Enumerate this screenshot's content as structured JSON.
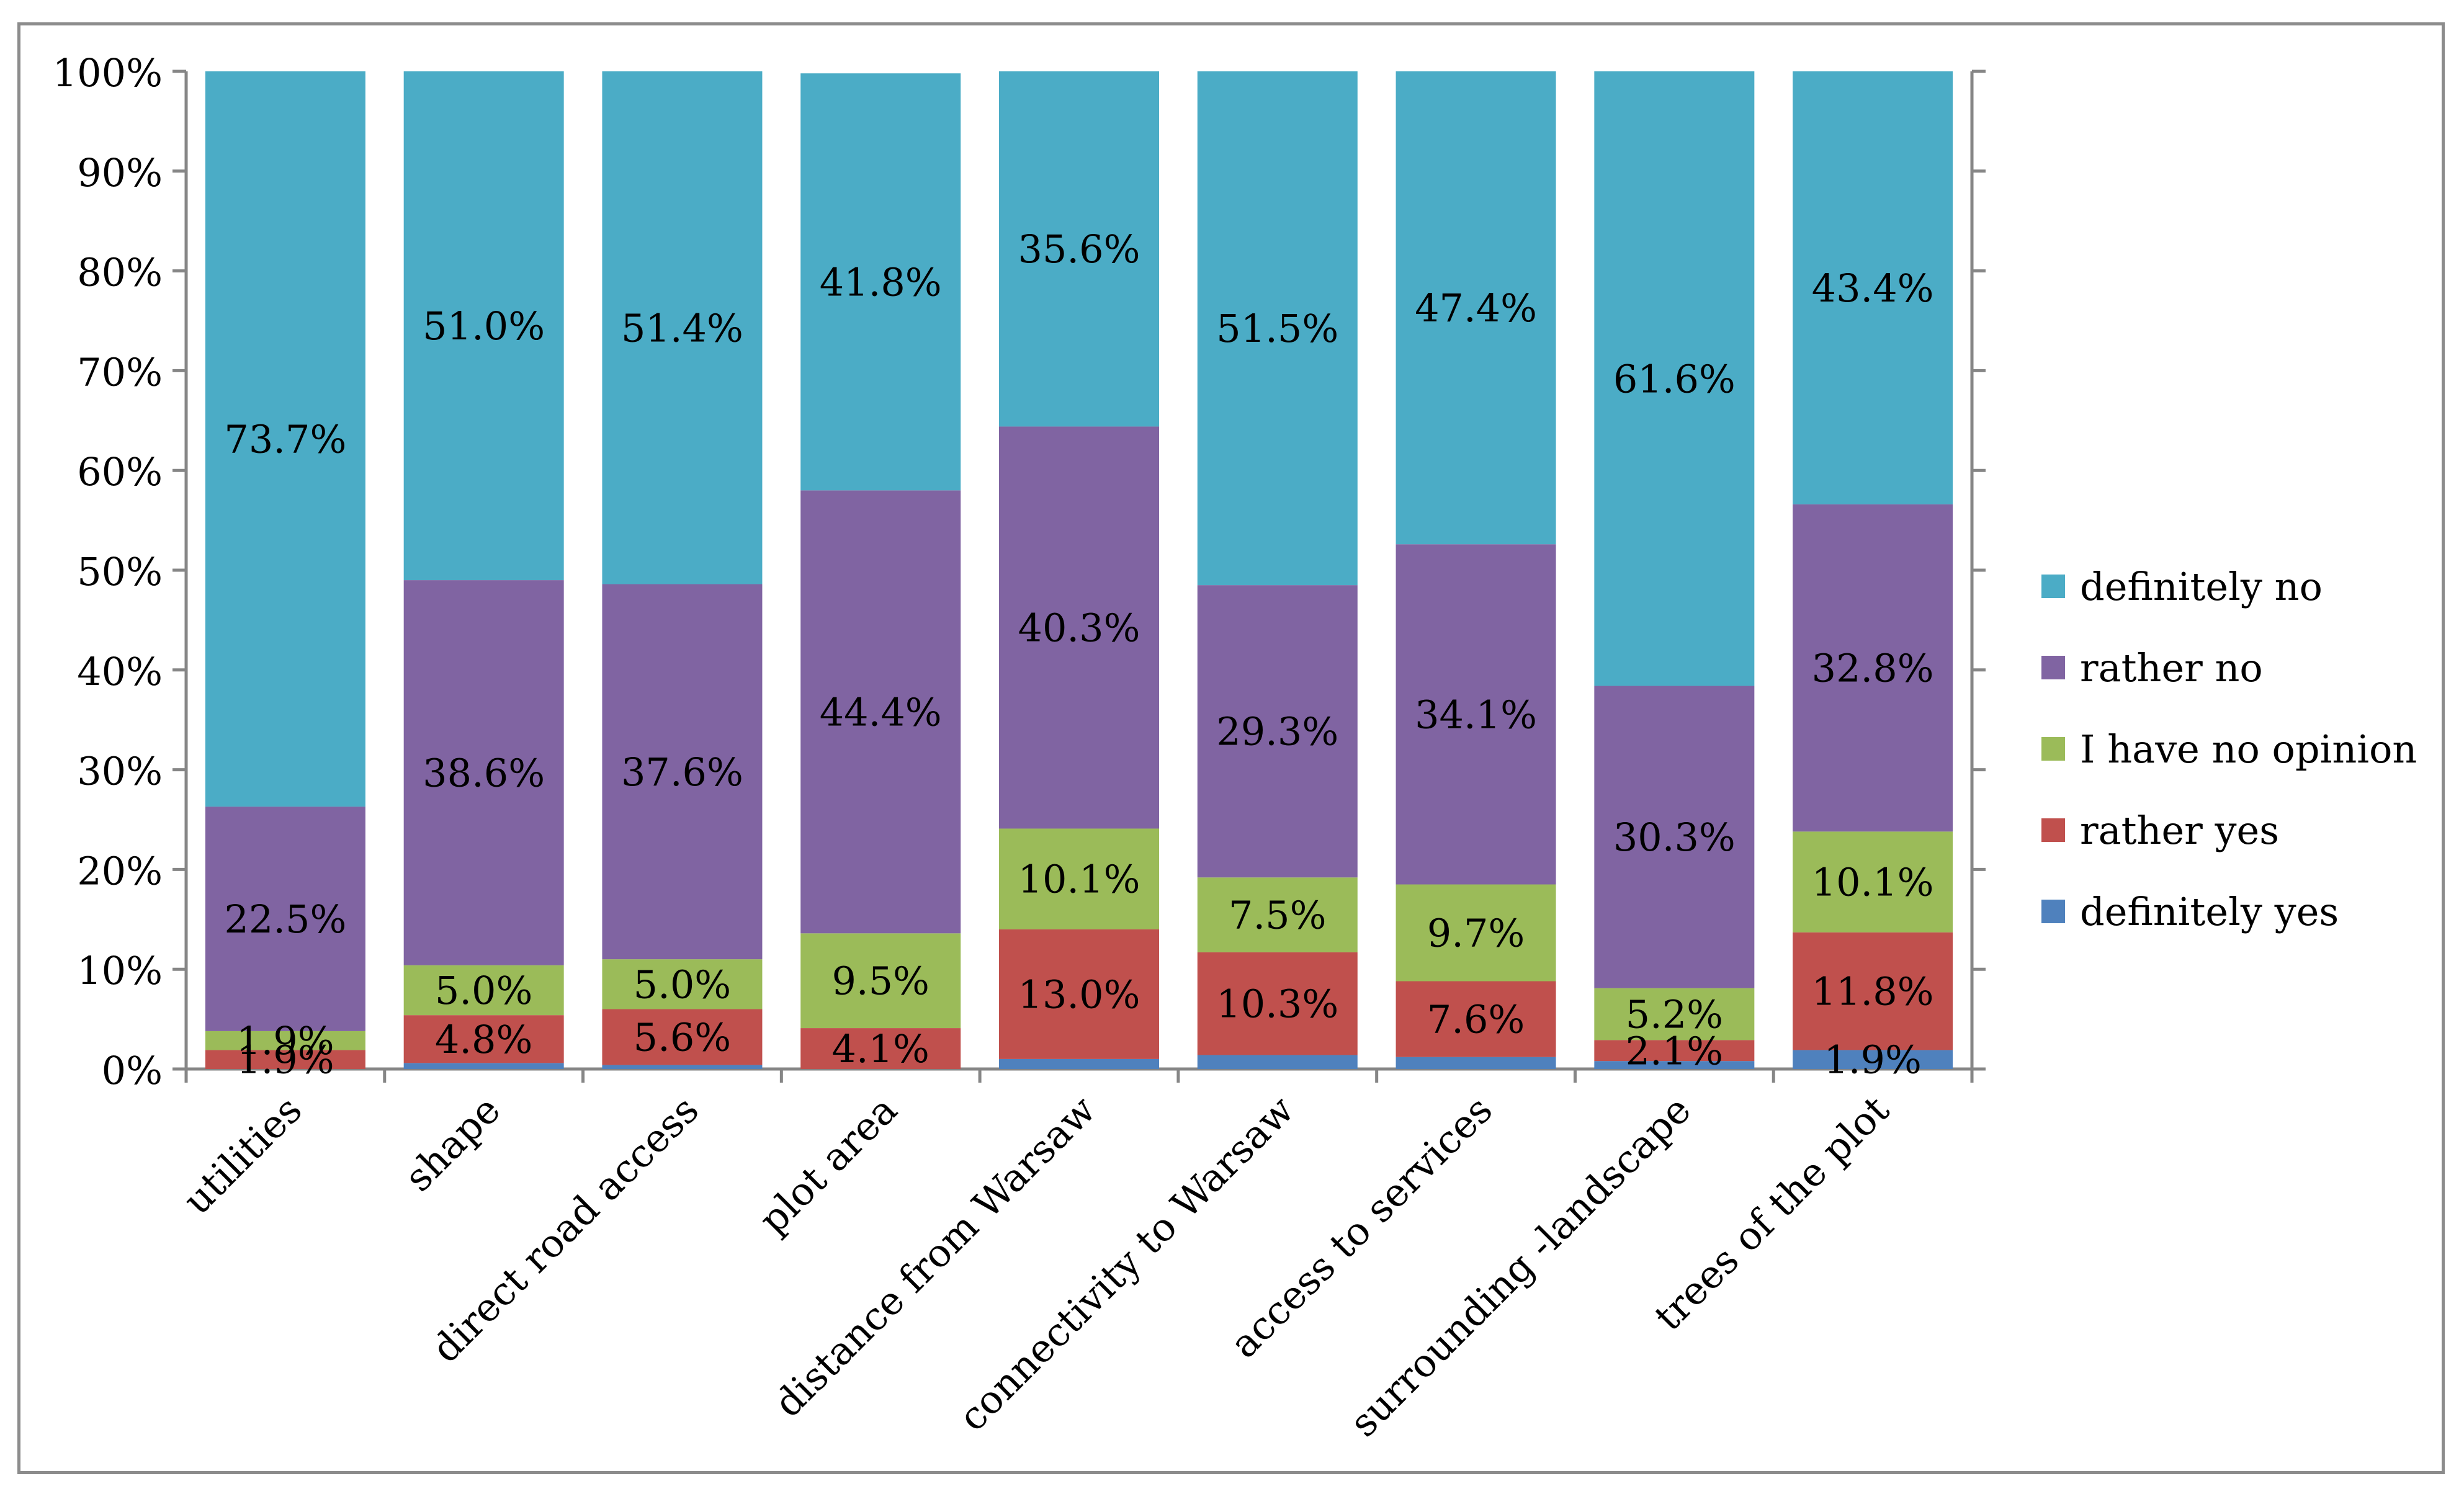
{
  "chart_data": {
    "type": "bar",
    "stacked": true,
    "percent_stacked": true,
    "title": "",
    "xlabel": "",
    "ylabel": "",
    "ylim": [
      0,
      100
    ],
    "yticks": [
      "0%",
      "10%",
      "20%",
      "30%",
      "40%",
      "50%",
      "60%",
      "70%",
      "80%",
      "90%",
      "100%"
    ],
    "categories": [
      "utilities",
      "shape",
      "direct road access",
      "plot area",
      "distance from Warsaw",
      "connectivity to Warsaw",
      "access to services",
      "surrounding -landscape",
      "trees of the plot"
    ],
    "series": [
      {
        "name": "definitely yes",
        "color": "#4F81BD",
        "values": [
          0.0,
          0.6,
          0.4,
          0.0,
          1.0,
          1.4,
          1.2,
          0.8,
          1.9
        ],
        "labels": [
          "",
          "",
          "",
          "",
          "",
          "",
          "",
          "",
          "1.9%"
        ]
      },
      {
        "name": "rather yes",
        "color": "#C0504D",
        "values": [
          1.9,
          4.8,
          5.6,
          4.1,
          13.0,
          10.3,
          7.6,
          2.1,
          11.8
        ],
        "labels": [
          "1.9%",
          "4.8%",
          "5.6%",
          "4.1%",
          "13.0%",
          "10.3%",
          "7.6%",
          "2.1%",
          "11.8%"
        ]
      },
      {
        "name": "I have no opinion",
        "color": "#9BBB59",
        "values": [
          1.9,
          5.0,
          5.0,
          9.5,
          10.1,
          7.5,
          9.7,
          5.2,
          10.1
        ],
        "labels": [
          "1.9%",
          "5.0%",
          "5.0%",
          "9.5%",
          "10.1%",
          "7.5%",
          "9.7%",
          "5.2%",
          "10.1%"
        ]
      },
      {
        "name": "rather no",
        "color": "#8064A2",
        "values": [
          22.5,
          38.6,
          37.6,
          44.4,
          40.3,
          29.3,
          34.1,
          30.3,
          32.8
        ],
        "labels": [
          "22.5%",
          "38.6%",
          "37.6%",
          "44.4%",
          "40.3%",
          "29.3%",
          "34.1%",
          "30.3%",
          "32.8%"
        ]
      },
      {
        "name": "definitely no",
        "color": "#4BACC6",
        "values": [
          73.7,
          51.0,
          51.4,
          41.8,
          35.6,
          51.5,
          47.4,
          61.6,
          43.4
        ],
        "labels": [
          "73.7%",
          "51.0%",
          "51.4%",
          "41.8%",
          "35.6%",
          "51.5%",
          "47.4%",
          "61.6%",
          "43.4%"
        ]
      }
    ],
    "legend": {
      "position": "right",
      "order": [
        "definitely no",
        "rather no",
        "I have no opinion",
        "rather yes",
        "definitely yes"
      ]
    }
  }
}
